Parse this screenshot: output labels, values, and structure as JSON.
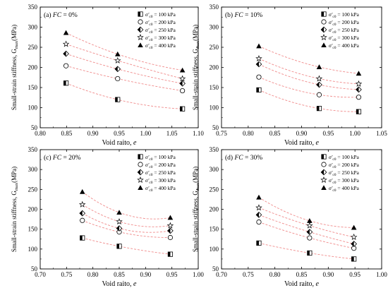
{
  "figure": {
    "ylabel": "Small-strain stiffness, G",
    "ylabel_sub": "max",
    "ylabel_unit": "(MPa)",
    "xlabel": "Void raito, ",
    "xlabel_var": "e",
    "legend_var": "σ'",
    "legend_sub": "c0",
    "legend_eq": " = ",
    "fit_color": "#f08a8a"
  },
  "chart_data": [
    {
      "type": "scatter",
      "panel_label": "(a)",
      "fc_label": "FC",
      "fc_value": " =  0%",
      "xlim": [
        0.8,
        1.1
      ],
      "ylim": [
        50,
        350
      ],
      "xticks": [
        "0.80",
        "0.85",
        "0.90",
        "0.95",
        "1.00",
        "1.05",
        "1.10"
      ],
      "yticks": [
        "50",
        "100",
        "150",
        "200",
        "250",
        "300",
        "350"
      ],
      "series": [
        {
          "name": "100 kPa",
          "marker": "half-square",
          "x": [
            0.849,
            0.947,
            1.07
          ],
          "y": [
            161,
            120,
            97
          ]
        },
        {
          "name": "200 kPa",
          "marker": "circle",
          "x": [
            0.849,
            0.947,
            1.07
          ],
          "y": [
            204,
            172,
            142
          ]
        },
        {
          "name": "250 kPa",
          "marker": "half-diamond",
          "x": [
            0.849,
            0.947,
            1.07
          ],
          "y": [
            234,
            196,
            160
          ]
        },
        {
          "name": "300 kPa",
          "marker": "star",
          "x": [
            0.849,
            0.947,
            1.07
          ],
          "y": [
            258,
            217,
            172
          ]
        },
        {
          "name": "400 kPa",
          "marker": "triangle",
          "x": [
            0.849,
            0.947,
            1.07
          ],
          "y": [
            286,
            233,
            193
          ]
        }
      ]
    },
    {
      "type": "scatter",
      "panel_label": "(b)",
      "fc_label": "FC",
      "fc_value": " = 10%",
      "xlim": [
        0.75,
        1.05
      ],
      "ylim": [
        50,
        350
      ],
      "xticks": [
        "0.75",
        "0.80",
        "0.85",
        "0.90",
        "0.95",
        "1.00",
        "1.05"
      ],
      "yticks": [
        "50",
        "100",
        "150",
        "200",
        "250",
        "300",
        "350"
      ],
      "series": [
        {
          "name": "100 kPa",
          "marker": "half-square",
          "x": [
            0.82,
            0.933,
            1.007
          ],
          "y": [
            144,
            98,
            90
          ]
        },
        {
          "name": "200 kPa",
          "marker": "circle",
          "x": [
            0.82,
            0.933,
            1.007
          ],
          "y": [
            176,
            132,
            126
          ]
        },
        {
          "name": "250 kPa",
          "marker": "half-diamond",
          "x": [
            0.82,
            0.933,
            1.007
          ],
          "y": [
            208,
            157,
            145
          ]
        },
        {
          "name": "300 kPa",
          "marker": "star",
          "x": [
            0.82,
            0.933,
            1.007
          ],
          "y": [
            222,
            172,
            159
          ]
        },
        {
          "name": "400 kPa",
          "marker": "triangle",
          "x": [
            0.82,
            0.933,
            1.007
          ],
          "y": [
            253,
            201,
            185
          ]
        }
      ]
    },
    {
      "type": "scatter",
      "panel_label": "(c)",
      "fc_label": "FC",
      "fc_value": " = 20%",
      "xlim": [
        0.7,
        1.0
      ],
      "ylim": [
        50,
        350
      ],
      "xticks": [
        "0.70",
        "0.75",
        "0.80",
        "0.85",
        "0.90",
        "0.95",
        "1.00"
      ],
      "yticks": [
        "50",
        "100",
        "150",
        "200",
        "250",
        "300",
        "350"
      ],
      "series": [
        {
          "name": "100 kPa",
          "marker": "half-square",
          "x": [
            0.78,
            0.85,
            0.947
          ],
          "y": [
            128,
            107,
            87
          ]
        },
        {
          "name": "200 kPa",
          "marker": "circle",
          "x": [
            0.78,
            0.85,
            0.947
          ],
          "y": [
            172,
            143,
            129
          ]
        },
        {
          "name": "250 kPa",
          "marker": "half-diamond",
          "x": [
            0.78,
            0.85,
            0.947
          ],
          "y": [
            190,
            152,
            146
          ]
        },
        {
          "name": "300 kPa",
          "marker": "star",
          "x": [
            0.78,
            0.85,
            0.947
          ],
          "y": [
            212,
            169,
            159
          ]
        },
        {
          "name": "400 kPa",
          "marker": "triangle",
          "x": [
            0.78,
            0.85,
            0.947
          ],
          "y": [
            244,
            192,
            179
          ]
        }
      ]
    },
    {
      "type": "scatter",
      "panel_label": "(d)",
      "fc_label": "FC",
      "fc_value": " = 30%",
      "xlim": [
        0.7,
        1.0
      ],
      "ylim": [
        50,
        350
      ],
      "xticks": [
        "0.70",
        "0.75",
        "0.80",
        "0.85",
        "0.90",
        "0.95",
        "1.00"
      ],
      "yticks": [
        "50",
        "100",
        "150",
        "200",
        "250",
        "300",
        "350"
      ],
      "series": [
        {
          "name": "100 kPa",
          "marker": "half-square",
          "x": [
            0.77,
            0.865,
            0.948
          ],
          "y": [
            115,
            90,
            75
          ]
        },
        {
          "name": "200 kPa",
          "marker": "circle",
          "x": [
            0.77,
            0.865,
            0.948
          ],
          "y": [
            168,
            128,
            102
          ]
        },
        {
          "name": "250 kPa",
          "marker": "half-diamond",
          "x": [
            0.77,
            0.865,
            0.948
          ],
          "y": [
            186,
            143,
            113
          ]
        },
        {
          "name": "300 kPa",
          "marker": "star",
          "x": [
            0.77,
            0.865,
            0.948
          ],
          "y": [
            204,
            159,
            130
          ]
        },
        {
          "name": "400 kPa",
          "marker": "triangle",
          "x": [
            0.77,
            0.865,
            0.948
          ],
          "y": [
            230,
            171,
            154
          ]
        }
      ]
    }
  ]
}
